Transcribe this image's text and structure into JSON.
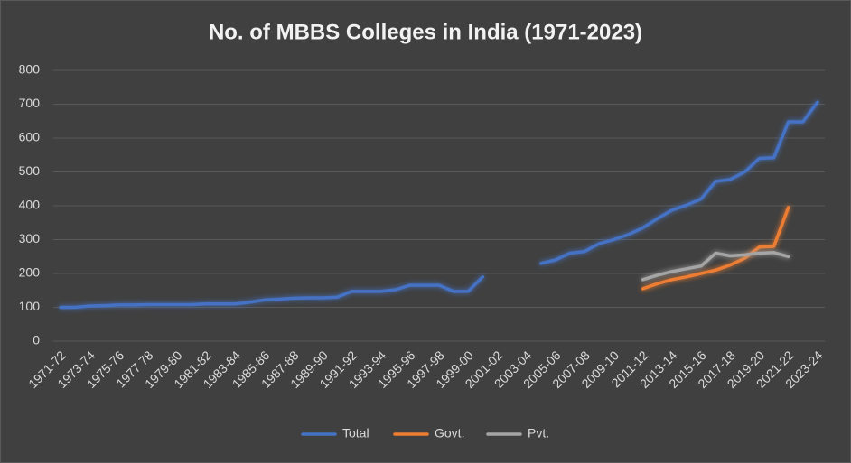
{
  "chart_data": {
    "type": "line",
    "title": "No. of MBBS Colleges in India (1971-2023)",
    "categories": [
      "1971-72",
      null,
      "1973-74",
      null,
      "1975-76",
      null,
      "1977 78",
      null,
      "1979-80",
      null,
      "1981-82",
      null,
      "1983-84",
      null,
      "1985-86",
      null,
      "1987-88",
      null,
      "1989-90",
      null,
      "1991-92",
      null,
      "1993-94",
      null,
      "1995-96",
      null,
      "1997-98",
      null,
      "1999-00",
      null,
      "2001-02",
      null,
      "2003-04",
      null,
      "2005-06",
      null,
      "2007-08",
      null,
      "2009-10",
      null,
      "2011-12",
      null,
      "2013-14",
      null,
      "2015-16",
      null,
      "2017-18",
      null,
      "2019-20",
      null,
      "2021-22",
      null,
      "2023-24"
    ],
    "series": [
      {
        "name": "Total",
        "color": "#4472c4",
        "values": [
          100,
          100,
          104,
          105,
          107,
          107,
          108,
          108,
          108,
          108,
          110,
          110,
          110,
          115,
          122,
          124,
          127,
          128,
          128,
          130,
          147,
          147,
          147,
          152,
          165,
          165,
          165,
          147,
          147,
          190,
          null,
          null,
          null,
          230,
          240,
          260,
          265,
          288,
          300,
          315,
          335,
          362,
          387,
          402,
          420,
          472,
          478,
          500,
          540,
          542,
          648,
          648,
          706
        ]
      },
      {
        "name": "Govt.",
        "color": "#ed7d31",
        "values": [
          null,
          null,
          null,
          null,
          null,
          null,
          null,
          null,
          null,
          null,
          null,
          null,
          null,
          null,
          null,
          null,
          null,
          null,
          null,
          null,
          null,
          null,
          null,
          null,
          null,
          null,
          null,
          null,
          null,
          null,
          null,
          null,
          null,
          null,
          null,
          null,
          null,
          null,
          null,
          null,
          155,
          170,
          182,
          190,
          200,
          210,
          225,
          245,
          278,
          280,
          395,
          null,
          null
        ]
      },
      {
        "name": "Pvt.",
        "color": "#a5a5a5",
        "values": [
          null,
          null,
          null,
          null,
          null,
          null,
          null,
          null,
          null,
          null,
          null,
          null,
          null,
          null,
          null,
          null,
          null,
          null,
          null,
          null,
          null,
          null,
          null,
          null,
          null,
          null,
          null,
          null,
          null,
          null,
          null,
          null,
          null,
          null,
          null,
          null,
          null,
          null,
          null,
          null,
          182,
          195,
          206,
          214,
          222,
          260,
          252,
          255,
          260,
          262,
          250,
          null,
          null
        ]
      }
    ],
    "ylim": [
      0,
      800
    ],
    "yticks": [
      0,
      100,
      200,
      300,
      400,
      500,
      600,
      700,
      800
    ],
    "grid": true,
    "legend": "bottom"
  }
}
